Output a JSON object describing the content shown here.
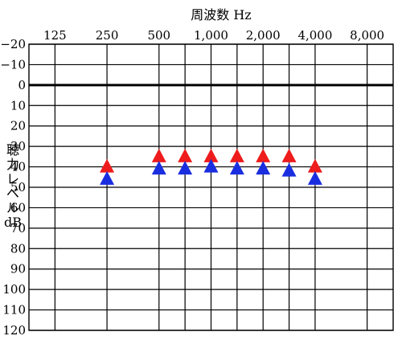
{
  "chart_data": {
    "type": "scatter",
    "title": "周波数 Hz",
    "ylabel_lines": [
      "聴",
      "力",
      "レ",
      "ベ",
      "ル",
      "dB"
    ],
    "x_tick_labels": [
      "125",
      "250",
      "500",
      "1,000",
      "2,000",
      "4,000",
      "8,000"
    ],
    "x_tick_positions": [
      0.5,
      1.5,
      2.5,
      3.5,
      4.5,
      5.5,
      6.5
    ],
    "x_vertical_lines": [
      0.5,
      1.5,
      2.5,
      3,
      3.5,
      4,
      4.5,
      5,
      5.5,
      6.5
    ],
    "x_range": [
      0,
      7
    ],
    "ylim": [
      -20,
      120
    ],
    "y_ticks": [
      -20,
      -10,
      0,
      10,
      20,
      30,
      40,
      50,
      60,
      70,
      80,
      90,
      100,
      110,
      120
    ],
    "y_tick_labels": [
      "−20",
      "−10",
      "0",
      "10",
      "20",
      "30",
      "40",
      "50",
      "60",
      "70",
      "80",
      "90",
      "100",
      "110",
      "120"
    ],
    "reference_line": 0,
    "grid": true,
    "series": [
      {
        "marker": "triangle-up",
        "color": "#ee1c1c",
        "x_positions": [
          1.5,
          2.5,
          3,
          3.5,
          4,
          4.5,
          5,
          5.5
        ],
        "x_labels": [
          "250",
          "500",
          "750",
          "1,000",
          "1,500",
          "2,000",
          "3,000",
          "4,000"
        ],
        "values": [
          40,
          35,
          35,
          35,
          35,
          35,
          35,
          40
        ]
      },
      {
        "marker": "triangle-up",
        "color": "#1a2ee0",
        "x_positions": [
          1.5,
          2.5,
          3,
          3.5,
          4,
          4.5,
          5,
          5.5
        ],
        "x_labels": [
          "250",
          "500",
          "750",
          "1,000",
          "1,500",
          "2,000",
          "3,000",
          "4,000"
        ],
        "values": [
          46,
          41,
          41,
          40,
          41,
          41,
          42,
          46
        ]
      }
    ]
  }
}
